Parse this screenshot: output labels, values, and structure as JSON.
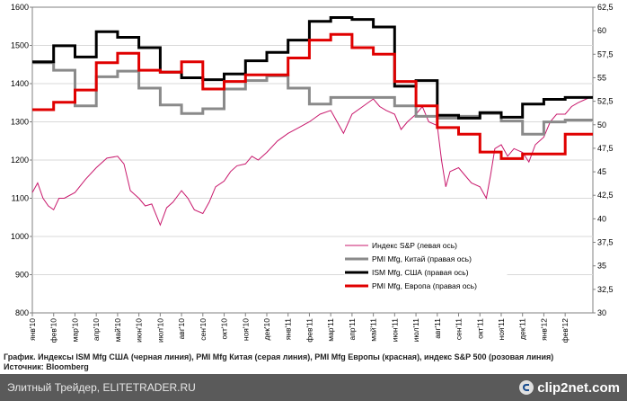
{
  "chart_data": {
    "type": "line",
    "title": "",
    "x_labels": [
      "янв'10",
      "фев'10",
      "мар'10",
      "апр'10",
      "май'10",
      "июн'10",
      "июл'10",
      "авг'10",
      "сен'10",
      "окт'10",
      "ноя'10",
      "дек'10",
      "янв'11",
      "фев'11",
      "мар'11",
      "апр'11",
      "май'11",
      "июн'11",
      "июл'11",
      "авг'11",
      "сен'11",
      "окт'11",
      "ноя'11",
      "дек'11",
      "янв'12",
      "фев'12"
    ],
    "x_range": [
      0,
      26.3
    ],
    "left_axis": {
      "min": 800,
      "max": 1600,
      "ticks": [
        800,
        900,
        1000,
        1100,
        1200,
        1300,
        1400,
        1500,
        1600
      ]
    },
    "right_axis": {
      "min": 30,
      "max": 62.5,
      "ticks": [
        "30",
        "32,5",
        "35",
        "37,5",
        "40",
        "42,5",
        "45",
        "47,5",
        "50",
        "52,5",
        "55",
        "57,5",
        "60",
        "62,5"
      ]
    },
    "legend": [
      {
        "label": "Индекс S&P (левая ось)",
        "color": "#c8186c"
      },
      {
        "label": "PMI Mfg, Китай (правая ось)",
        "color": "#8a8a8a"
      },
      {
        "label": "ISM Mfg, США (правая ось)",
        "color": "#000000"
      },
      {
        "label": "PMI Mfg, Европа (правая ось)",
        "color": "#e00000"
      }
    ],
    "series": [
      {
        "name": "Индекс S&P (левая ось)",
        "axis": "left",
        "color": "#c8186c",
        "points": [
          [
            0.0,
            1115
          ],
          [
            0.25,
            1140
          ],
          [
            0.5,
            1100
          ],
          [
            0.75,
            1080
          ],
          [
            1.0,
            1070
          ],
          [
            1.25,
            1100
          ],
          [
            1.5,
            1100
          ],
          [
            2.0,
            1115
          ],
          [
            2.5,
            1150
          ],
          [
            3.0,
            1180
          ],
          [
            3.5,
            1205
          ],
          [
            4.0,
            1210
          ],
          [
            4.3,
            1190
          ],
          [
            4.6,
            1120
          ],
          [
            5.0,
            1100
          ],
          [
            5.3,
            1080
          ],
          [
            5.6,
            1085
          ],
          [
            6.0,
            1030
          ],
          [
            6.3,
            1075
          ],
          [
            6.6,
            1090
          ],
          [
            7.0,
            1120
          ],
          [
            7.3,
            1100
          ],
          [
            7.6,
            1070
          ],
          [
            8.0,
            1060
          ],
          [
            8.3,
            1090
          ],
          [
            8.6,
            1130
          ],
          [
            9.0,
            1145
          ],
          [
            9.3,
            1170
          ],
          [
            9.6,
            1185
          ],
          [
            10.0,
            1190
          ],
          [
            10.3,
            1210
          ],
          [
            10.6,
            1200
          ],
          [
            11.0,
            1220
          ],
          [
            11.5,
            1250
          ],
          [
            12.0,
            1270
          ],
          [
            12.5,
            1285
          ],
          [
            13.0,
            1300
          ],
          [
            13.5,
            1320
          ],
          [
            14.0,
            1330
          ],
          [
            14.3,
            1300
          ],
          [
            14.6,
            1270
          ],
          [
            15.0,
            1320
          ],
          [
            15.5,
            1340
          ],
          [
            16.0,
            1360
          ],
          [
            16.3,
            1340
          ],
          [
            16.6,
            1330
          ],
          [
            17.0,
            1320
          ],
          [
            17.3,
            1280
          ],
          [
            17.6,
            1300
          ],
          [
            18.0,
            1320
          ],
          [
            18.3,
            1340
          ],
          [
            18.6,
            1300
          ],
          [
            19.0,
            1290
          ],
          [
            19.2,
            1200
          ],
          [
            19.4,
            1130
          ],
          [
            19.6,
            1170
          ],
          [
            20.0,
            1180
          ],
          [
            20.3,
            1160
          ],
          [
            20.6,
            1140
          ],
          [
            21.0,
            1130
          ],
          [
            21.3,
            1100
          ],
          [
            21.5,
            1160
          ],
          [
            21.7,
            1230
          ],
          [
            22.0,
            1240
          ],
          [
            22.3,
            1210
          ],
          [
            22.6,
            1230
          ],
          [
            23.0,
            1220
          ],
          [
            23.3,
            1195
          ],
          [
            23.6,
            1240
          ],
          [
            24.0,
            1260
          ],
          [
            24.3,
            1300
          ],
          [
            24.6,
            1320
          ],
          [
            25.0,
            1320
          ],
          [
            25.3,
            1340
          ],
          [
            25.6,
            1350
          ],
          [
            26.0,
            1360
          ],
          [
            26.2,
            1365
          ]
        ]
      },
      {
        "name": "PMI Mfg, Китай (правая ось)",
        "axis": "right",
        "color": "#8a8a8a",
        "points": [
          [
            0,
            56.6
          ],
          [
            1.0,
            55.8
          ],
          [
            2.0,
            52.0
          ],
          [
            3.0,
            55.1
          ],
          [
            4.0,
            55.7
          ],
          [
            5.0,
            53.9
          ],
          [
            6.0,
            52.1
          ],
          [
            7.0,
            51.2
          ],
          [
            8.0,
            51.7
          ],
          [
            9.0,
            53.8
          ],
          [
            10.0,
            54.7
          ],
          [
            11.0,
            55.2
          ],
          [
            12.0,
            53.9
          ],
          [
            13.0,
            52.2
          ],
          [
            14.0,
            52.9
          ],
          [
            15.0,
            52.9
          ],
          [
            16.0,
            52.9
          ],
          [
            17.0,
            52.0
          ],
          [
            18.0,
            50.9
          ],
          [
            19.0,
            50.7
          ],
          [
            20.0,
            50.9
          ],
          [
            21.0,
            51.2
          ],
          [
            22.0,
            50.4
          ],
          [
            23.0,
            49.0
          ],
          [
            24.0,
            50.3
          ],
          [
            25.0,
            50.5
          ],
          [
            26.3,
            50.5
          ]
        ]
      },
      {
        "name": "ISM Mfg, США (правая ось)",
        "axis": "right",
        "color": "#000000",
        "points": [
          [
            0,
            56.7
          ],
          [
            1.0,
            58.4
          ],
          [
            2.0,
            57.2
          ],
          [
            3.0,
            59.9
          ],
          [
            4.0,
            59.3
          ],
          [
            5.0,
            58.2
          ],
          [
            6.0,
            55.6
          ],
          [
            7.0,
            55.0
          ],
          [
            8.0,
            54.8
          ],
          [
            9.0,
            55.4
          ],
          [
            10.0,
            56.8
          ],
          [
            11.0,
            57.7
          ],
          [
            12.0,
            59.0
          ],
          [
            13.0,
            61.0
          ],
          [
            14.0,
            61.4
          ],
          [
            15.0,
            61.2
          ],
          [
            16.0,
            60.4
          ],
          [
            17.0,
            54.1
          ],
          [
            18.0,
            54.7
          ],
          [
            19.0,
            51.0
          ],
          [
            20.0,
            50.7
          ],
          [
            21.0,
            51.3
          ],
          [
            22.0,
            50.8
          ],
          [
            23.0,
            52.2
          ],
          [
            24.0,
            52.7
          ],
          [
            25.0,
            52.9
          ],
          [
            26.3,
            52.9
          ]
        ]
      },
      {
        "name": "PMI Mfg, Европа (правая ось)",
        "axis": "right",
        "color": "#e00000",
        "points": [
          [
            0,
            51.6
          ],
          [
            1.0,
            52.4
          ],
          [
            2.0,
            53.7
          ],
          [
            3.0,
            56.6
          ],
          [
            4.0,
            57.6
          ],
          [
            5.0,
            55.8
          ],
          [
            6.0,
            55.6
          ],
          [
            7.0,
            56.7
          ],
          [
            8.0,
            53.8
          ],
          [
            9.0,
            54.6
          ],
          [
            10.0,
            55.3
          ],
          [
            11.0,
            55.3
          ],
          [
            12.0,
            57.1
          ],
          [
            13.0,
            59.0
          ],
          [
            14.0,
            59.6
          ],
          [
            15.0,
            58.2
          ],
          [
            16.0,
            57.5
          ],
          [
            17.0,
            54.6
          ],
          [
            18.0,
            52.0
          ],
          [
            19.0,
            49.7
          ],
          [
            20.0,
            49.0
          ],
          [
            21.0,
            47.1
          ],
          [
            22.0,
            46.4
          ],
          [
            23.0,
            46.9
          ],
          [
            24.0,
            46.9
          ],
          [
            25.0,
            49.0
          ],
          [
            26.3,
            49.0
          ]
        ]
      }
    ]
  },
  "caption": {
    "line1": "График. Индексы ISM Mfg США (черная линия), PMI Mfg Китая (серая линия), PMI Mfg Европы (красная), индекс S&P 500 (розовая линия)",
    "line2": "Источник: Bloomberg"
  },
  "footer": {
    "left_text": "Элитный Трейдер, ELITETRADER.RU",
    "brand": "clip2net.com",
    "brand_icon": "clip-icon"
  }
}
